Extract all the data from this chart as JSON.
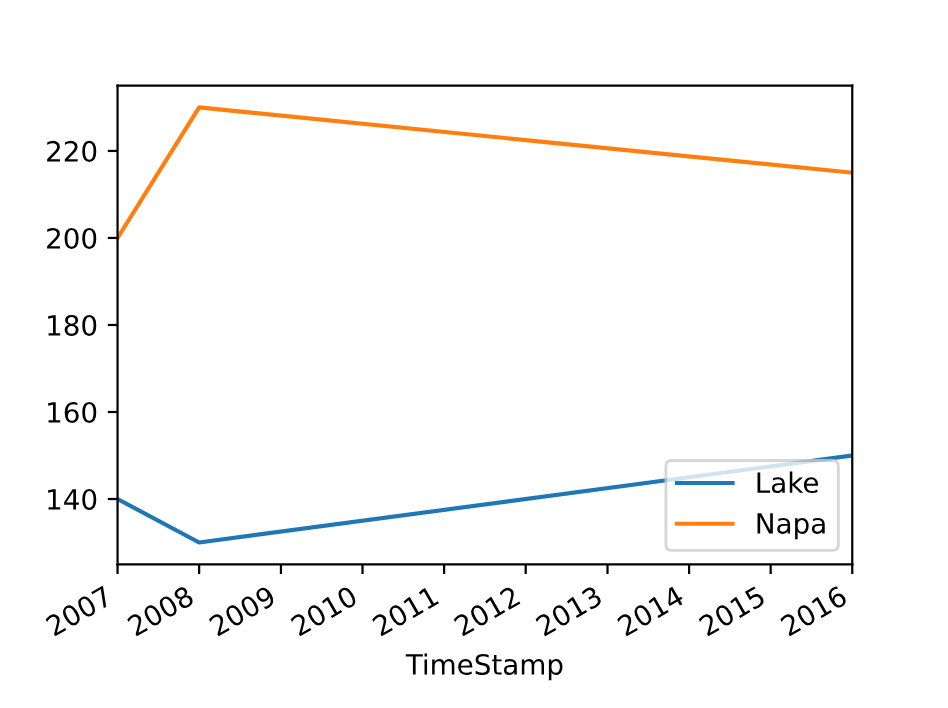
{
  "chart_data": {
    "type": "line",
    "xlabel": "TimeStamp",
    "series": [
      {
        "name": "Lake",
        "color": "#1f77b4",
        "x": [
          "2007",
          "2008",
          "2016"
        ],
        "values": [
          140,
          130,
          150
        ]
      },
      {
        "name": "Napa",
        "color": "#ff7f0e",
        "x": [
          "2007",
          "2008",
          "2016"
        ],
        "values": [
          200,
          230,
          215
        ]
      }
    ],
    "xlim": [
      "2007",
      "2016"
    ],
    "xticks": [
      "2007",
      "2008",
      "2009",
      "2010",
      "2011",
      "2012",
      "2013",
      "2014",
      "2015",
      "2016"
    ],
    "ylim": [
      125,
      235
    ],
    "yticks": [
      140,
      160,
      180,
      200,
      220
    ],
    "legend": "lower right",
    "grid": false,
    "line_style": "solid",
    "marker": "none"
  }
}
